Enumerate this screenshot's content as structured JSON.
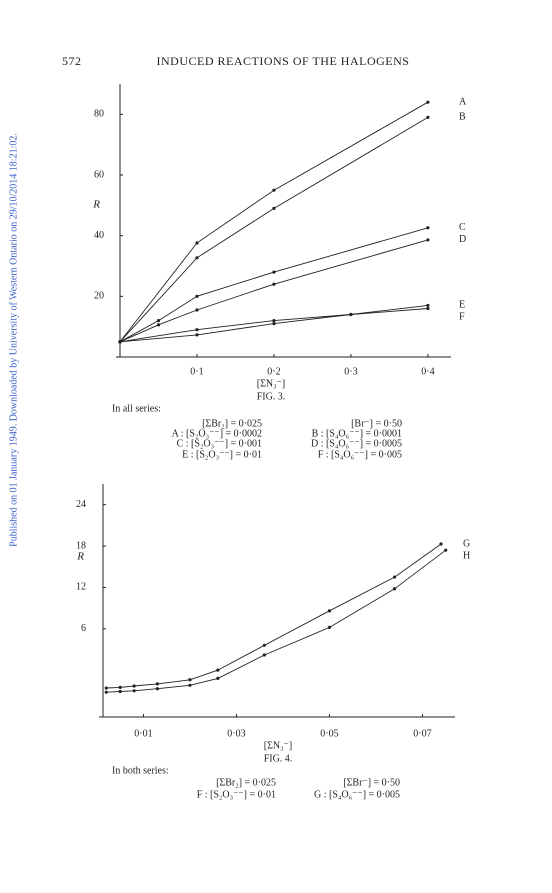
{
  "header": {
    "page_number": "572",
    "title": "INDUCED REACTIONS OF THE HALOGENS"
  },
  "side_note": "Published on 01 January 1949. Downloaded by University of Western Ontario on 29/10/2014 18:21:02.",
  "chart_data": [
    {
      "type": "line",
      "xlabel": "[ΣN₃⁻]",
      "ylabel": "R",
      "color": "#222222",
      "markers": true,
      "xlim": [
        0,
        0.43
      ],
      "ylim": [
        0,
        90
      ],
      "xticks": [
        {
          "value": 0.1,
          "label": "0·1"
        },
        {
          "value": 0.2,
          "label": "0·2"
        },
        {
          "value": 0.3,
          "label": "0·3"
        },
        {
          "value": 0.4,
          "label": "0·4"
        }
      ],
      "yticks": [
        20,
        40,
        60,
        80
      ],
      "series": [
        {
          "name": "A",
          "x": [
            0,
            0.1,
            0.2,
            0.4
          ],
          "values": [
            5,
            37.6,
            55,
            84
          ]
        },
        {
          "name": "B",
          "x": [
            0,
            0.1,
            0.2,
            0.4
          ],
          "values": [
            5,
            32.7,
            49,
            79
          ]
        },
        {
          "name": "C",
          "x": [
            0,
            0.05,
            0.1,
            0.2,
            0.4
          ],
          "values": [
            5,
            12,
            20,
            28,
            42.6
          ]
        },
        {
          "name": "D",
          "x": [
            0,
            0.05,
            0.1,
            0.2,
            0.4
          ],
          "values": [
            5,
            10.6,
            15.5,
            24,
            38.6
          ]
        },
        {
          "name": "E",
          "x": [
            0,
            0.1,
            0.2,
            0.3,
            0.4
          ],
          "values": [
            5,
            9,
            12,
            14,
            17
          ]
        },
        {
          "name": "F",
          "x": [
            0,
            0.1,
            0.2,
            0.3,
            0.4
          ],
          "values": [
            5,
            7.3,
            11,
            14,
            16
          ]
        }
      ]
    },
    {
      "type": "line",
      "xlabel": "[ΣN₃⁻]",
      "ylabel": "R",
      "color": "#222222",
      "markers": true,
      "xlim": [
        0.0013,
        0.077
      ],
      "ylim": [
        -6.8,
        27
      ],
      "xticks": [
        {
          "value": 0.01,
          "label": "0·01"
        },
        {
          "value": 0.03,
          "label": "0·03"
        },
        {
          "value": 0.05,
          "label": "0·05"
        },
        {
          "value": 0.07,
          "label": "0·07"
        }
      ],
      "yticks": [
        6,
        12,
        18,
        24
      ],
      "series": [
        {
          "name": "G",
          "x": [
            0.002,
            0.005,
            0.008,
            0.013,
            0.02,
            0.026,
            0.036,
            0.05,
            0.064,
            0.074
          ],
          "values": [
            -2.6,
            -2.5,
            -2.3,
            -2.0,
            -1.4,
            0,
            3.6,
            8.6,
            13.5,
            18.3
          ]
        },
        {
          "name": "H",
          "x": [
            0.002,
            0.005,
            0.008,
            0.013,
            0.02,
            0.026,
            0.036,
            0.05,
            0.064,
            0.075
          ],
          "values": [
            -3.2,
            -3.1,
            -3.0,
            -2.7,
            -2.2,
            -1.2,
            2.2,
            6.2,
            11.8,
            17.4
          ]
        }
      ]
    }
  ],
  "figures": [
    {
      "caption": "FIG. 3.",
      "heading": "In all series:",
      "conditions": [
        [
          "[ΣBr₂] = 0·025",
          "[Br⁻] = 0·50"
        ],
        [
          "A : [S₂O₃⁻⁻] = 0·0002",
          "B : [S₄O₆⁻⁻] = 0·0001"
        ],
        [
          "C : [S₂O₃⁻⁻] = 0·001",
          "D : [S₄O₆⁻⁻] = 0·0005"
        ],
        [
          "E : [S₂O₃⁻⁻] = 0·01",
          "F : [S₄O₆⁻⁻] = 0·005"
        ]
      ]
    },
    {
      "caption": "FIG. 4.",
      "heading": "In both series:",
      "conditions": [
        [
          "[ΣBr₂] = 0·025",
          "[ΣBr⁻] = 0·50"
        ],
        [
          "F : [S₂O₃⁻⁻] = 0·01",
          "G : [S₄O₆⁻⁻] = 0·005"
        ]
      ]
    }
  ]
}
